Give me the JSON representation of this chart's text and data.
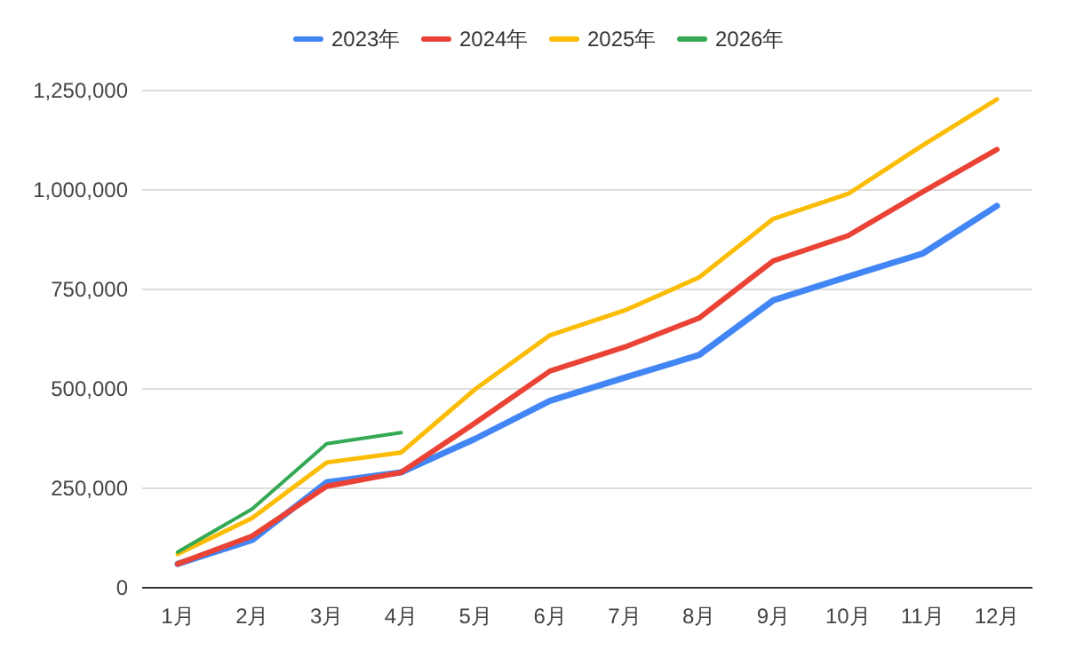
{
  "chart_data": {
    "type": "line",
    "categories": [
      "1月",
      "2月",
      "3月",
      "4月",
      "5月",
      "6月",
      "7月",
      "8月",
      "9月",
      "10月",
      "11月",
      "12月"
    ],
    "series": [
      {
        "name": "2023年",
        "color": "#4285f4",
        "values": [
          60000,
          120000,
          265000,
          290000,
          375000,
          470000,
          528000,
          585000,
          723000,
          782000,
          840000,
          960000
        ]
      },
      {
        "name": "2024年",
        "color": "#ea4335",
        "values": [
          60000,
          130000,
          255000,
          290000,
          415000,
          545000,
          605000,
          678000,
          822000,
          885000,
          995000,
          1102000
        ]
      },
      {
        "name": "2025年",
        "color": "#fbbc04",
        "values": [
          85000,
          175000,
          315000,
          340000,
          500000,
          635000,
          697000,
          780000,
          928000,
          990000,
          1112000,
          1228000
        ]
      },
      {
        "name": "2026年",
        "color": "#34a853",
        "values": [
          90000,
          198000,
          362000,
          390000,
          null,
          null,
          null,
          null,
          null,
          null,
          null,
          null
        ]
      }
    ],
    "ylim": [
      0,
      1250000
    ],
    "yticks": [
      {
        "value": 0,
        "label": "0"
      },
      {
        "value": 250000,
        "label": "250,000"
      },
      {
        "value": 500000,
        "label": "500,000"
      },
      {
        "value": 750000,
        "label": "750,000"
      },
      {
        "value": 1000000,
        "label": "1,000,000"
      },
      {
        "value": 1250000,
        "label": "1,250,000"
      }
    ],
    "grid": "y",
    "legend": "top",
    "marker": "none",
    "line_style": "solid"
  }
}
